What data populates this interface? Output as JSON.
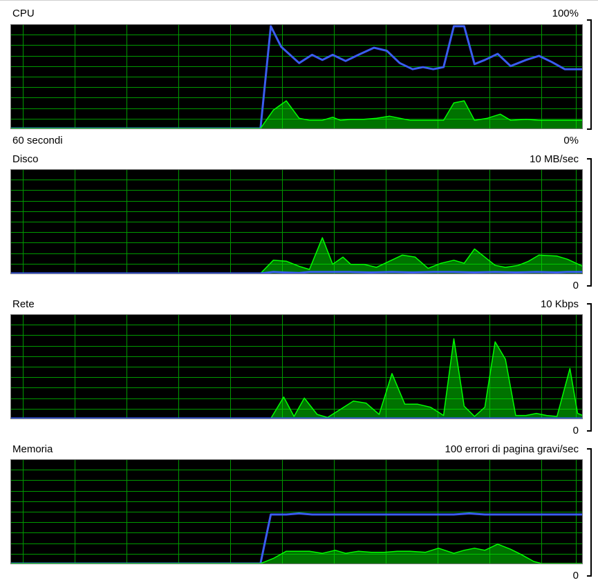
{
  "panels": [
    {
      "id": "cpu",
      "title": "CPU",
      "max_label": "100%",
      "min_label": "0%",
      "sub_label": "60 secondi",
      "series": [
        {
          "color": "#3a5cf0",
          "fill": false,
          "points": [
            [
              0,
              0
            ],
            [
              48.5,
              0
            ],
            [
              50.5,
              100
            ],
            [
              52.5,
              80
            ],
            [
              56,
              64
            ],
            [
              58.5,
              72
            ],
            [
              60.5,
              67
            ],
            [
              62.5,
              72
            ],
            [
              65,
              66
            ],
            [
              67.5,
              72
            ],
            [
              70.5,
              79
            ],
            [
              73,
              76
            ],
            [
              75.5,
              64
            ],
            [
              78,
              58
            ],
            [
              80,
              60
            ],
            [
              82,
              58
            ],
            [
              84,
              60
            ],
            [
              86,
              100
            ],
            [
              88,
              100
            ],
            [
              90,
              63
            ],
            [
              92,
              67
            ],
            [
              94.5,
              73
            ],
            [
              97,
              61
            ],
            [
              100,
              67
            ],
            [
              102.5,
              71
            ],
            [
              105,
              65
            ],
            [
              107.5,
              58
            ],
            [
              110,
              58
            ],
            [
              111,
              58
            ]
          ]
        },
        {
          "color": "#00ff00",
          "fill": true,
          "points": [
            [
              0,
              0
            ],
            [
              48.5,
              0
            ],
            [
              51,
              18
            ],
            [
              53.5,
              27
            ],
            [
              56,
              10
            ],
            [
              58,
              8
            ],
            [
              60.5,
              8
            ],
            [
              62.5,
              11
            ],
            [
              64,
              8
            ],
            [
              66,
              9
            ],
            [
              68.5,
              9
            ],
            [
              71,
              10
            ],
            [
              73.5,
              12
            ],
            [
              75.5,
              10
            ],
            [
              77.5,
              8
            ],
            [
              80,
              8
            ],
            [
              82,
              8
            ],
            [
              84,
              8
            ],
            [
              86,
              25
            ],
            [
              88,
              27
            ],
            [
              90,
              8
            ],
            [
              92.5,
              10
            ],
            [
              95,
              14
            ],
            [
              97,
              8
            ],
            [
              100,
              9
            ],
            [
              102.5,
              8
            ],
            [
              105,
              8
            ],
            [
              107.5,
              8
            ],
            [
              111,
              8
            ]
          ]
        }
      ]
    },
    {
      "id": "disco",
      "title": "Disco",
      "max_label": "10 MB/sec",
      "min_label": "0",
      "series": [
        {
          "color": "#00ff00",
          "fill": true,
          "points": [
            [
              0,
              0
            ],
            [
              48.5,
              0
            ],
            [
              51,
              13
            ],
            [
              53.5,
              12
            ],
            [
              56,
              7
            ],
            [
              58,
              4
            ],
            [
              60.5,
              35
            ],
            [
              62.5,
              9
            ],
            [
              64.5,
              16
            ],
            [
              66,
              9
            ],
            [
              68.5,
              9
            ],
            [
              71,
              6
            ],
            [
              73.5,
              12
            ],
            [
              76,
              18
            ],
            [
              78.5,
              16
            ],
            [
              81,
              5
            ],
            [
              83.5,
              10
            ],
            [
              86,
              13
            ],
            [
              88,
              10
            ],
            [
              90,
              24
            ],
            [
              92,
              16
            ],
            [
              94,
              8
            ],
            [
              96,
              6
            ],
            [
              98.5,
              8
            ],
            [
              100.5,
              12
            ],
            [
              102.5,
              18
            ],
            [
              106,
              17
            ],
            [
              108,
              14
            ],
            [
              111,
              7
            ]
          ]
        },
        {
          "color": "#3a5cf0",
          "fill": false,
          "points": [
            [
              0,
              0
            ],
            [
              48.5,
              0
            ],
            [
              51,
              1.5
            ],
            [
              53,
              1
            ],
            [
              56,
              0.5
            ],
            [
              58,
              1.5
            ],
            [
              62,
              1.5
            ],
            [
              66,
              1.5
            ],
            [
              70,
              1
            ],
            [
              74,
              1.5
            ],
            [
              78,
              1
            ],
            [
              82,
              1.5
            ],
            [
              86,
              1.5
            ],
            [
              90,
              1
            ],
            [
              94,
              1.5
            ],
            [
              98,
              1
            ],
            [
              102,
              1.5
            ],
            [
              106,
              1
            ],
            [
              108,
              1.5
            ],
            [
              111,
              1.5
            ]
          ]
        }
      ]
    },
    {
      "id": "rete",
      "title": "Rete",
      "max_label": "10 Kbps",
      "min_label": "0",
      "series": [
        {
          "color": "#00ff00",
          "fill": true,
          "points": [
            [
              0,
              0
            ],
            [
              50.5,
              0
            ],
            [
              53,
              21
            ],
            [
              55,
              2
            ],
            [
              57,
              20
            ],
            [
              59.5,
              4
            ],
            [
              61.5,
              1
            ],
            [
              64,
              9
            ],
            [
              66.5,
              17
            ],
            [
              69,
              15
            ],
            [
              71.5,
              4
            ],
            [
              74,
              44
            ],
            [
              76.5,
              14
            ],
            [
              79,
              14
            ],
            [
              81.5,
              11
            ],
            [
              84,
              3
            ],
            [
              86,
              78
            ],
            [
              88,
              12
            ],
            [
              90,
              2
            ],
            [
              92,
              11
            ],
            [
              94,
              75
            ],
            [
              96,
              58
            ],
            [
              98,
              3
            ],
            [
              100,
              3
            ],
            [
              102,
              5
            ],
            [
              104,
              3
            ],
            [
              106,
              2
            ],
            [
              108.5,
              49
            ],
            [
              110,
              5
            ],
            [
              111,
              3
            ]
          ]
        },
        {
          "color": "#3a5cf0",
          "fill": false,
          "points": [
            [
              0,
              0
            ],
            [
              111,
              0
            ]
          ]
        }
      ]
    },
    {
      "id": "memoria",
      "title": "Memoria",
      "max_label": "100 errori di pagina gravi/sec",
      "min_label": "0",
      "series": [
        {
          "color": "#3a5cf0",
          "fill": false,
          "points": [
            [
              0,
              0
            ],
            [
              48.5,
              0
            ],
            [
              50.5,
              48
            ],
            [
              53.5,
              48
            ],
            [
              56,
              49
            ],
            [
              58.5,
              48
            ],
            [
              62,
              48
            ],
            [
              66,
              48
            ],
            [
              70,
              48
            ],
            [
              74,
              48
            ],
            [
              78,
              48
            ],
            [
              82,
              48
            ],
            [
              86,
              48
            ],
            [
              89,
              49
            ],
            [
              92,
              48
            ],
            [
              96,
              48
            ],
            [
              100,
              48
            ],
            [
              104,
              48
            ],
            [
              108,
              48
            ],
            [
              111,
              48
            ]
          ]
        },
        {
          "color": "#00ff00",
          "fill": true,
          "points": [
            [
              0,
              0
            ],
            [
              48.5,
              0
            ],
            [
              51,
              5
            ],
            [
              53.5,
              12
            ],
            [
              56,
              12
            ],
            [
              58,
              12
            ],
            [
              60.5,
              10
            ],
            [
              63,
              13
            ],
            [
              65,
              10
            ],
            [
              67.5,
              12
            ],
            [
              70,
              11
            ],
            [
              72.5,
              11
            ],
            [
              75,
              12
            ],
            [
              77.5,
              12
            ],
            [
              80.5,
              11
            ],
            [
              83,
              15
            ],
            [
              86,
              10
            ],
            [
              88,
              13
            ],
            [
              90,
              15
            ],
            [
              92,
              13
            ],
            [
              94.5,
              19
            ],
            [
              97,
              14
            ],
            [
              99,
              9
            ],
            [
              101.5,
              2
            ],
            [
              103,
              0
            ],
            [
              111,
              0
            ]
          ]
        }
      ]
    }
  ]
}
